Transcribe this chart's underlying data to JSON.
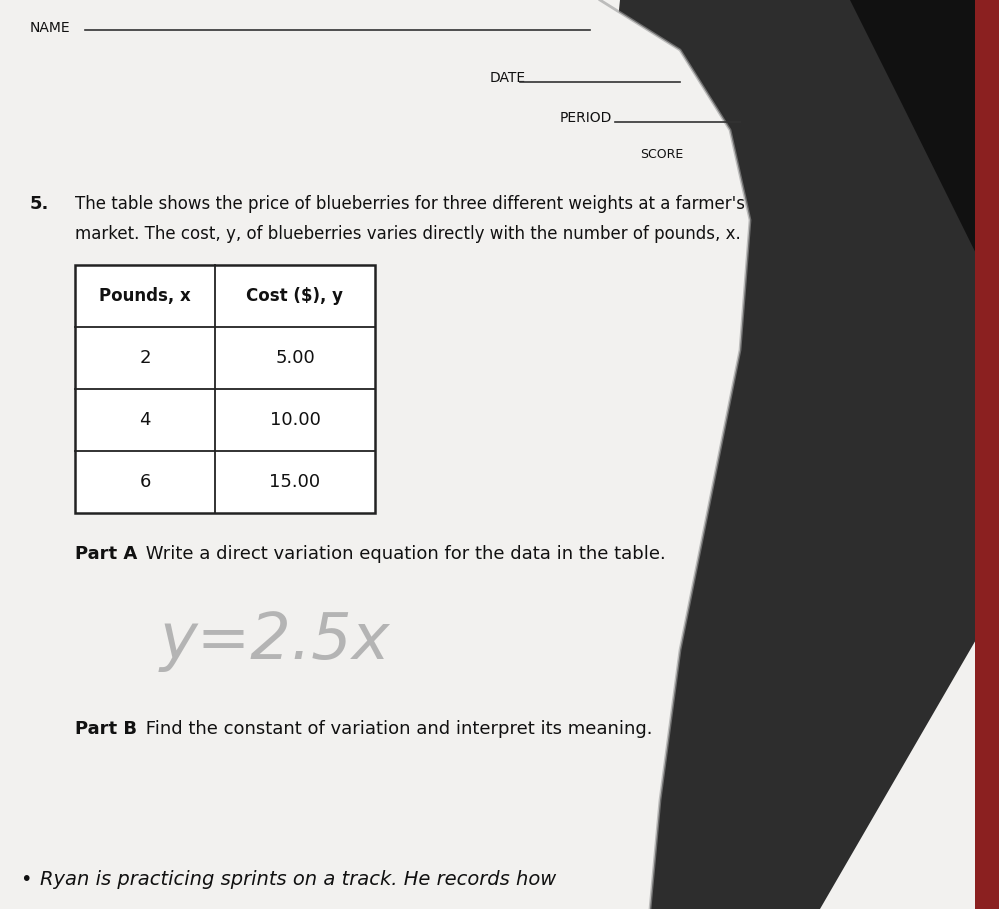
{
  "paper_color": "#dcdcdc",
  "page_color": "#e8e8e6",
  "white_page": "#f2f1ef",
  "dark_bg": "#3a3a3a",
  "darker_corner": "#1a1a1a",
  "text_color": "#111111",
  "table_border_color": "#222222",
  "handwritten_color": "#888888",
  "name_label": "NAME",
  "date_label": "DATE",
  "period_label": "PERIOD",
  "score_label": "SCORE",
  "problem_number": "5.",
  "problem_text_line1": "The table shows the price of blueberries for three different weights at a farmer's",
  "problem_text_line2": "market. The cost, y, of blueberries varies directly with the number of pounds, x.",
  "table_headers": [
    "Pounds, x",
    "Cost ($), y"
  ],
  "table_data": [
    [
      "2",
      "5.00"
    ],
    [
      "4",
      "10.00"
    ],
    [
      "6",
      "15.00"
    ]
  ],
  "part_a_label": "Part A",
  "part_a_text": " Write a direct variation equation for the data in the table.",
  "handwritten_answer": "y=2.5x",
  "part_b_label": "Part B",
  "part_b_text": " Find the constant of variation and interpret its meaning.",
  "bottom_bullet": "•",
  "bottom_text": "Ryan is practicing sprints on a track. He records how",
  "header_line_color": "#555555"
}
